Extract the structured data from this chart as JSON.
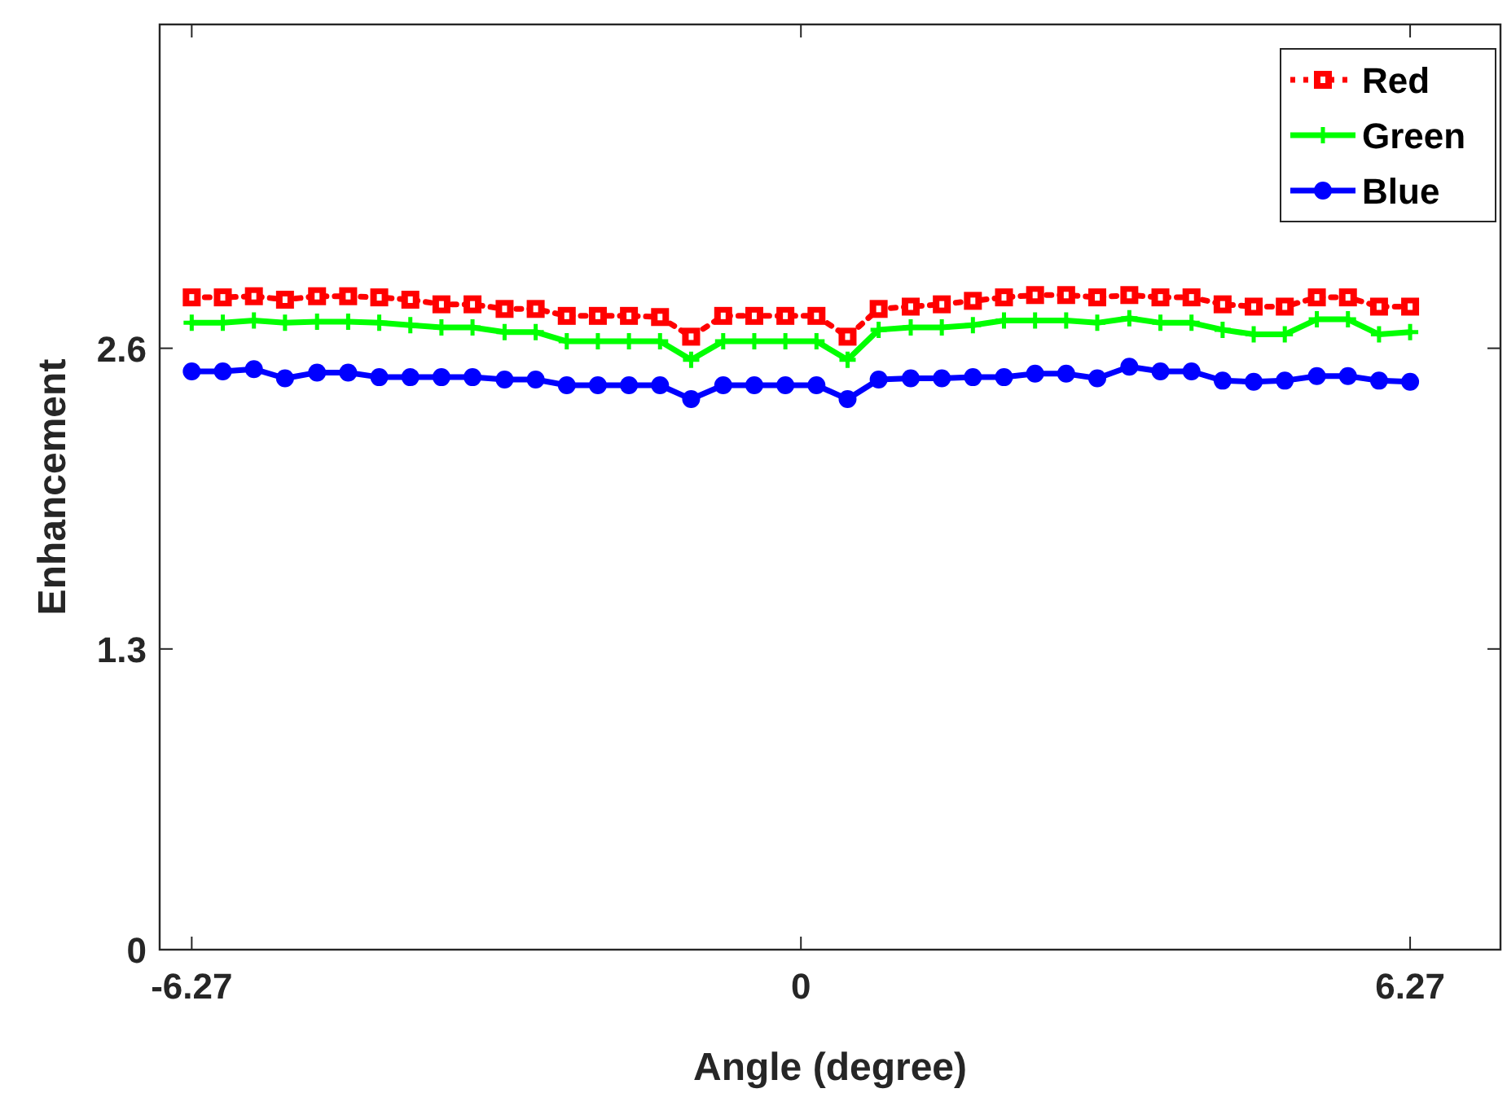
{
  "chart_data": {
    "type": "line",
    "xlabel": "Angle (degree)",
    "ylabel": "Enhancement",
    "x": [
      -6.27,
      -5.95,
      -5.63,
      -5.31,
      -4.98,
      -4.66,
      -4.34,
      -4.02,
      -3.7,
      -3.38,
      -3.05,
      -2.73,
      -2.41,
      -2.09,
      -1.77,
      -1.45,
      -1.13,
      -0.8,
      -0.48,
      -0.16,
      0.16,
      0.48,
      0.8,
      1.13,
      1.45,
      1.77,
      2.09,
      2.41,
      2.73,
      3.05,
      3.38,
      3.7,
      4.02,
      4.34,
      4.66,
      4.98,
      5.31,
      5.63,
      5.95,
      6.27
    ],
    "series": [
      {
        "name": "Red",
        "color": "#ff0000",
        "marker": "square",
        "line_style": "dotted",
        "values": [
          2.82,
          2.82,
          2.825,
          2.81,
          2.825,
          2.825,
          2.82,
          2.81,
          2.79,
          2.79,
          2.77,
          2.77,
          2.74,
          2.74,
          2.74,
          2.735,
          2.65,
          2.74,
          2.74,
          2.74,
          2.74,
          2.65,
          2.77,
          2.78,
          2.79,
          2.805,
          2.82,
          2.83,
          2.83,
          2.82,
          2.83,
          2.82,
          2.82,
          2.79,
          2.78,
          2.78,
          2.82,
          2.82,
          2.78,
          2.78
        ]
      },
      {
        "name": "Green",
        "color": "#00ff00",
        "marker": "cross",
        "line_style": "solid",
        "values": [
          2.71,
          2.71,
          2.72,
          2.71,
          2.715,
          2.715,
          2.71,
          2.7,
          2.69,
          2.69,
          2.67,
          2.67,
          2.63,
          2.63,
          2.63,
          2.63,
          2.55,
          2.63,
          2.63,
          2.63,
          2.63,
          2.55,
          2.68,
          2.69,
          2.69,
          2.7,
          2.72,
          2.72,
          2.72,
          2.71,
          2.73,
          2.71,
          2.71,
          2.68,
          2.66,
          2.66,
          2.725,
          2.725,
          2.66,
          2.67
        ]
      },
      {
        "name": "Blue",
        "color": "#0000ff",
        "marker": "circle",
        "line_style": "solid",
        "values": [
          2.5,
          2.5,
          2.51,
          2.47,
          2.495,
          2.495,
          2.475,
          2.475,
          2.475,
          2.475,
          2.465,
          2.465,
          2.44,
          2.44,
          2.44,
          2.44,
          2.38,
          2.44,
          2.44,
          2.44,
          2.44,
          2.38,
          2.465,
          2.47,
          2.47,
          2.475,
          2.475,
          2.49,
          2.49,
          2.47,
          2.52,
          2.5,
          2.5,
          2.46,
          2.455,
          2.46,
          2.48,
          2.48,
          2.46,
          2.455
        ]
      }
    ],
    "xlim": [
      -6.6,
      7.2
    ],
    "ylim": [
      0,
      4
    ],
    "xticks": [
      -6.27,
      0,
      6.27
    ],
    "yticks": [
      0,
      1.3,
      2.6
    ],
    "grid": false,
    "legend": "top right"
  }
}
